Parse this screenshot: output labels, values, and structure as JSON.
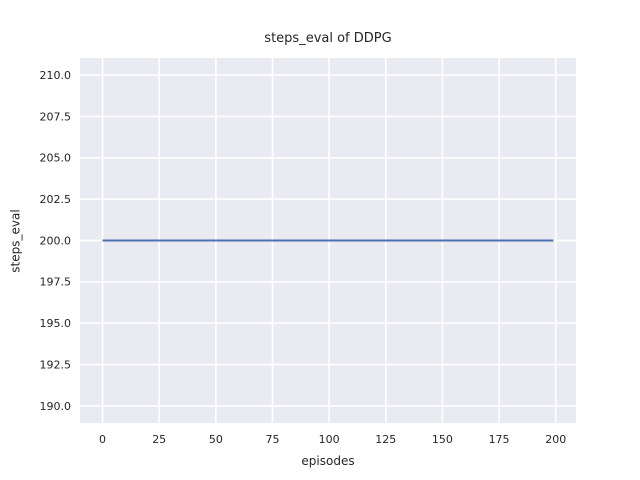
{
  "chart_data": {
    "type": "line",
    "title": "steps_eval of DDPG",
    "xlabel": "episodes",
    "ylabel": "steps_eval",
    "xlim": [
      -9.95,
      208.95
    ],
    "ylim": [
      188.97,
      211.03
    ],
    "xticks": [
      0,
      25,
      50,
      75,
      100,
      125,
      150,
      175,
      200
    ],
    "xtick_labels": [
      "0",
      "25",
      "50",
      "75",
      "100",
      "125",
      "150",
      "175",
      "200"
    ],
    "yticks": [
      190.0,
      192.5,
      195.0,
      197.5,
      200.0,
      202.5,
      205.0,
      207.5,
      210.0
    ],
    "ytick_labels": [
      "190.0",
      "192.5",
      "195.0",
      "197.5",
      "200.0",
      "202.5",
      "205.0",
      "207.5",
      "210.0"
    ],
    "grid": true,
    "legend": null,
    "colors": {
      "plot_background": "#eaeaf2",
      "gridline": "#ffffff",
      "line": "#4c72b0",
      "text": "#262626"
    },
    "series": [
      {
        "name": "steps_eval",
        "color": "#4c72b0",
        "x": [
          0,
          199
        ],
        "y": [
          200,
          200
        ]
      }
    ]
  }
}
